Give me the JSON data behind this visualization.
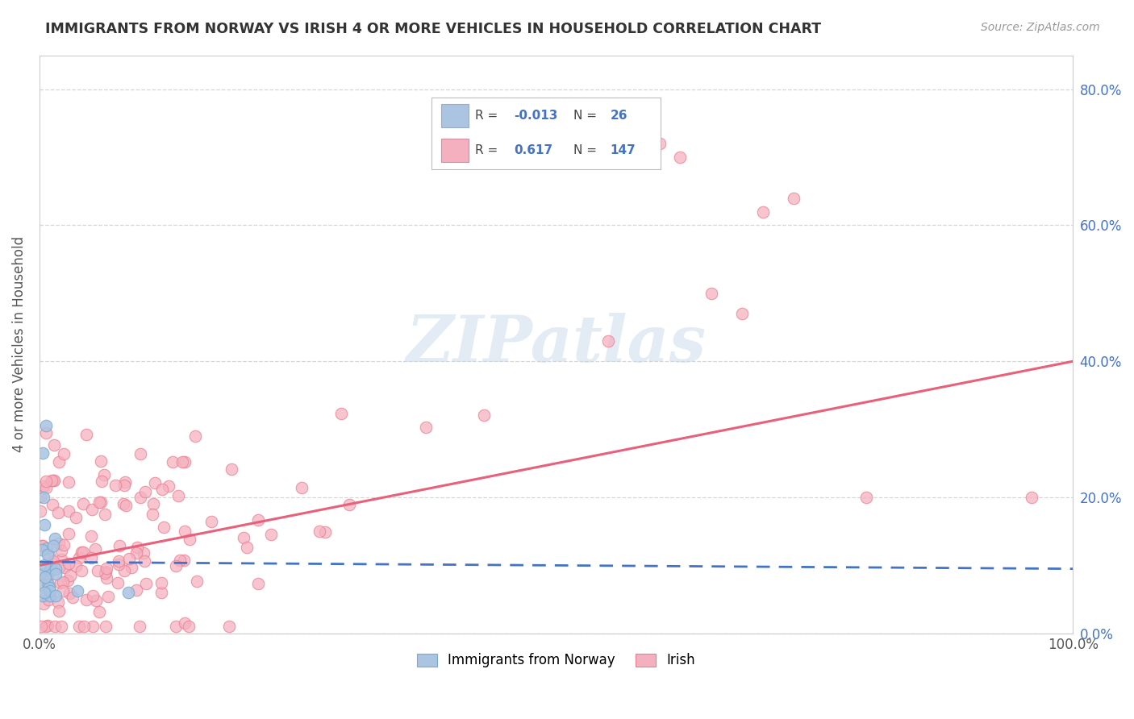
{
  "title": "IMMIGRANTS FROM NORWAY VS IRISH 4 OR MORE VEHICLES IN HOUSEHOLD CORRELATION CHART",
  "source": "Source: ZipAtlas.com",
  "ylabel": "4 or more Vehicles in Household",
  "norway_R": -0.013,
  "norway_N": 26,
  "irish_R": 0.617,
  "irish_N": 147,
  "norway_color": "#aac4e2",
  "norway_edge_color": "#7aaad0",
  "irish_color": "#f5b0c0",
  "irish_edge_color": "#e88090",
  "norway_line_color": "#4472c4",
  "irish_line_color": "#e8607a",
  "watermark": "ZIPatlas",
  "background_color": "#ffffff",
  "grid_color": "#cccccc",
  "legend_norway_label": "Immigrants from Norway",
  "legend_irish_label": "Irish",
  "xlim": [
    0.0,
    1.0
  ],
  "ylim": [
    0.0,
    0.85
  ],
  "y_ticks": [
    0.0,
    0.2,
    0.4,
    0.6,
    0.8
  ],
  "y_tick_labels": [
    "0.0%",
    "20.0%",
    "40.0%",
    "60.0%",
    "80.0%"
  ],
  "x_ticks": [
    0.0,
    1.0
  ],
  "x_tick_labels": [
    "0.0%",
    "100.0%"
  ],
  "irish_line_x0": 0.0,
  "irish_line_y0": 0.1,
  "irish_line_x1": 1.0,
  "irish_line_y1": 0.4,
  "norway_line_x0": 0.0,
  "norway_line_y0": 0.105,
  "norway_line_x1": 1.0,
  "norway_line_y1": 0.095
}
